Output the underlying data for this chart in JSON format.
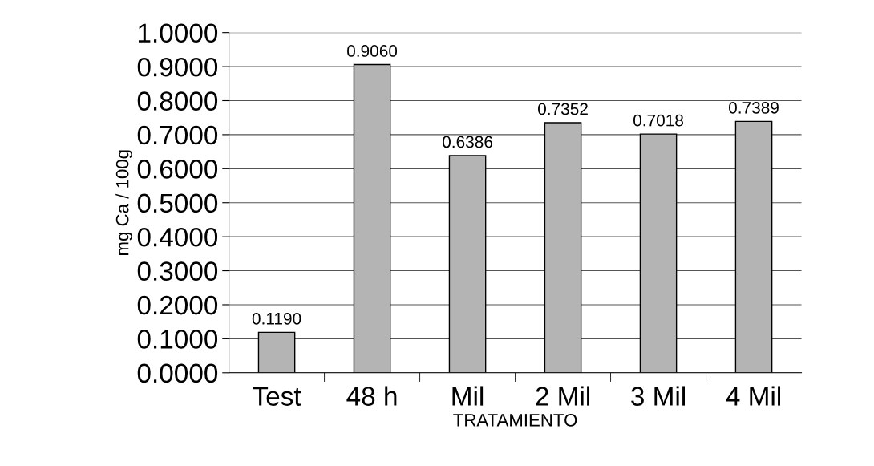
{
  "chart_data": {
    "type": "bar",
    "xlabel": "TRATAMIENTO",
    "ylabel": "mg Ca / 100g",
    "categories": [
      "Test",
      "48 h",
      "Mil",
      "2 Mil",
      "3 Mil",
      "4 Mil"
    ],
    "values": [
      0.119,
      0.906,
      0.6386,
      0.7352,
      0.7018,
      0.7389
    ],
    "value_labels": [
      "0.1190",
      "0.9060",
      "0.6386",
      "0.7352",
      "0.7018",
      "0.7389"
    ],
    "color": "#b4b4b4",
    "ylim": [
      0,
      1
    ],
    "yticks": [
      {
        "value": 0,
        "label": "0.0000"
      },
      {
        "value": 0.1,
        "label": "0.1000"
      },
      {
        "value": 0.2,
        "label": "0.2000"
      },
      {
        "value": 0.3,
        "label": "0.3000"
      },
      {
        "value": 0.4,
        "label": "0.4000"
      },
      {
        "value": 0.5,
        "label": "0.5000"
      },
      {
        "value": 0.6,
        "label": "0.6000"
      },
      {
        "value": 0.7,
        "label": "0.7000"
      },
      {
        "value": 0.8,
        "label": "0.8000"
      },
      {
        "value": 0.9,
        "label": "0.9000"
      },
      {
        "value": 1.0,
        "label": "1.0000"
      }
    ],
    "grid": "y",
    "legend": false
  }
}
